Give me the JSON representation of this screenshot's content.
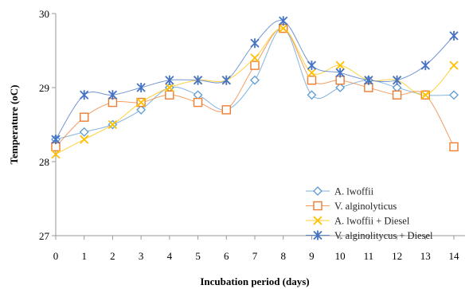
{
  "chart_data": {
    "type": "line",
    "xlabel": "Incubation period (days)",
    "ylabel": "Temperature (oC)",
    "x": [
      0,
      1,
      2,
      3,
      4,
      5,
      6,
      7,
      8,
      9,
      10,
      11,
      12,
      13,
      14
    ],
    "xlim": [
      0,
      14
    ],
    "ylim": [
      27,
      30
    ],
    "yticks": [
      27,
      28,
      29,
      30
    ],
    "grid": false,
    "legend_position": "bottom-right",
    "smooth_lines": true,
    "series": [
      {
        "name": "A. lwoffii",
        "marker": "diamond",
        "color": "#5B9BD5",
        "values": [
          28.3,
          28.4,
          28.5,
          28.7,
          29.0,
          28.9,
          28.7,
          29.1,
          29.8,
          28.9,
          29.0,
          29.1,
          29.0,
          28.9,
          28.9
        ]
      },
      {
        "name": "V. alginolyticus",
        "marker": "square",
        "color": "#ED7D31",
        "values": [
          28.2,
          28.6,
          28.8,
          28.8,
          28.9,
          28.8,
          28.7,
          29.3,
          29.8,
          29.1,
          29.1,
          29.0,
          28.9,
          28.9,
          28.2
        ]
      },
      {
        "name": "A. lwoffii + Diesel",
        "marker": "x",
        "color": "#FFC000",
        "values": [
          28.1,
          28.3,
          28.5,
          28.8,
          29.0,
          29.1,
          29.1,
          29.4,
          29.8,
          29.2,
          29.3,
          29.1,
          29.1,
          28.9,
          29.3
        ]
      },
      {
        "name": "V. alginolitycus + Diesel",
        "marker": "asterisk",
        "color": "#4472C4",
        "values": [
          28.3,
          28.9,
          28.9,
          29.0,
          29.1,
          29.1,
          29.1,
          29.6,
          29.9,
          29.3,
          29.2,
          29.1,
          29.1,
          29.3,
          29.7
        ]
      }
    ]
  }
}
